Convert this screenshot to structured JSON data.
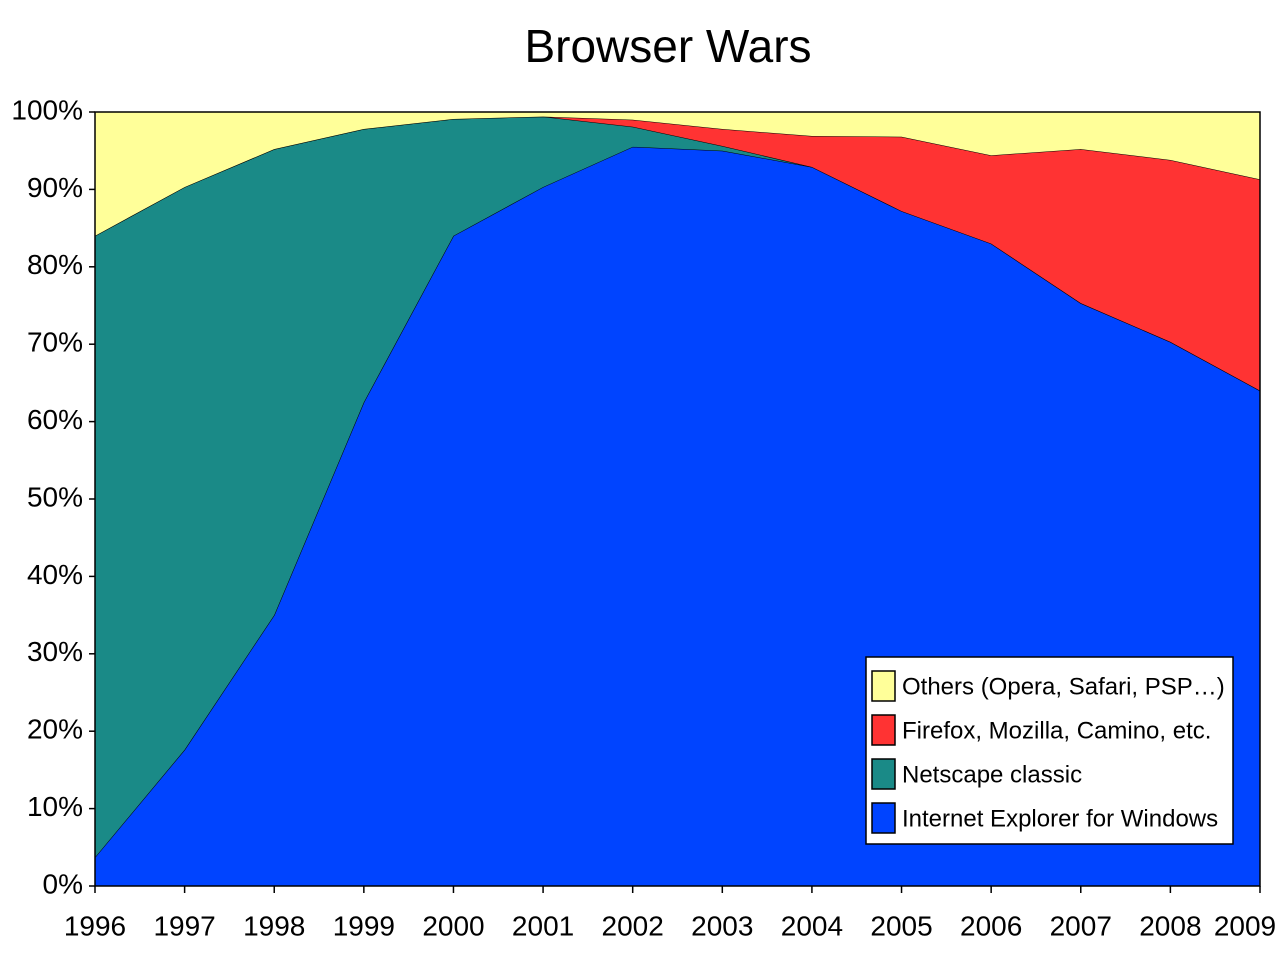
{
  "chart_data": {
    "type": "stacked-area",
    "title": "Browser Wars",
    "categories": [
      "1996",
      "1997",
      "1998",
      "1999",
      "2000",
      "2001",
      "2002",
      "2003",
      "2004",
      "2005",
      "2006",
      "2007",
      "2008",
      "2009"
    ],
    "series": [
      {
        "name": "Internet Explorer for Windows",
        "color": "#0044ff",
        "values": [
          3.7,
          17.6,
          35,
          62.5,
          84,
          90.3,
          95.5,
          95,
          92.9,
          87.2,
          83,
          75.3,
          70.3,
          64
        ]
      },
      {
        "name": "Netscape classic",
        "color": "#1a8a87",
        "values": [
          80.3,
          72.7,
          60.2,
          35.3,
          15.1,
          9.1,
          2.6,
          0.6,
          0,
          0,
          0,
          0,
          0,
          0
        ]
      },
      {
        "name": "Firefox, Mozilla, Camino, etc.",
        "color": "#ff3333",
        "values": [
          0,
          0,
          0,
          0,
          0,
          0,
          0.9,
          2.2,
          4.0,
          9.6,
          11.4,
          19.9,
          23.5,
          27.3
        ]
      },
      {
        "name": "Others (Opera, Safari, PSP…)",
        "color": "#ffff99",
        "values": [
          16,
          9.7,
          4.8,
          2.2,
          0.9,
          0.6,
          1.0,
          2.2,
          3.1,
          3.2,
          5.6,
          4.8,
          6.2,
          8.7
        ]
      }
    ],
    "ylim": [
      0,
      100
    ],
    "yticks": [
      {
        "value": 0,
        "label": "0%"
      },
      {
        "value": 10,
        "label": "10%"
      },
      {
        "value": 20,
        "label": "20%"
      },
      {
        "value": 30,
        "label": "30%"
      },
      {
        "value": 40,
        "label": "40%"
      },
      {
        "value": 50,
        "label": "50%"
      },
      {
        "value": 60,
        "label": "60%"
      },
      {
        "value": 70,
        "label": "70%"
      },
      {
        "value": 80,
        "label": "80%"
      },
      {
        "value": 90,
        "label": "90%"
      },
      {
        "value": 100,
        "label": "100%"
      }
    ],
    "legend": "bottom-right"
  }
}
